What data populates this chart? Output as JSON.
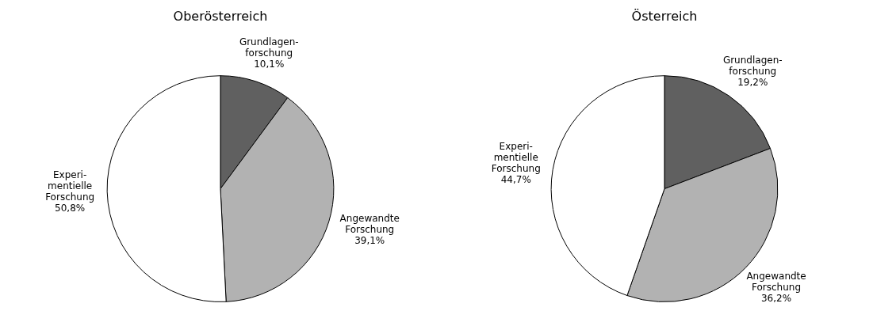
{
  "chart_data": [
    {
      "type": "pie",
      "title": "Oberösterreich",
      "categories": [
        "Grundlagen-\nforschung",
        "Angewandte\nForschung",
        "Experi-\nmentielle\nForschung"
      ],
      "values": [
        10.1,
        39.1,
        50.8
      ],
      "value_labels": [
        "10,1%",
        "39,1%",
        "50,8%"
      ],
      "colors": [
        "#606060",
        "#b2b2b2",
        "#ffffff"
      ],
      "legend": false
    },
    {
      "type": "pie",
      "title": "Österreich",
      "categories": [
        "Grundlagen-\nforschung",
        "Angewandte\nForschung",
        "Experi-\nmentielle\nForschung"
      ],
      "values": [
        19.2,
        36.2,
        44.7
      ],
      "value_labels": [
        "19,2%",
        "36,2%",
        "44,7%"
      ],
      "colors": [
        "#606060",
        "#b2b2b2",
        "#ffffff"
      ],
      "legend": false
    }
  ]
}
